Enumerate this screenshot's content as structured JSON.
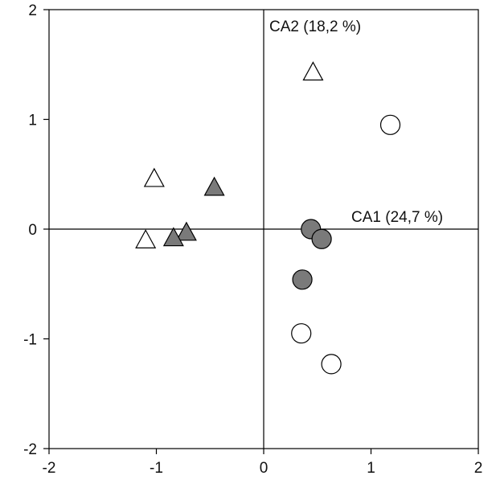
{
  "chart_data": {
    "type": "scatter",
    "xlim": [
      -2,
      2
    ],
    "ylim": [
      -2,
      2
    ],
    "x_ticks": [
      -2,
      -1,
      0,
      1,
      2
    ],
    "y_ticks": [
      -2,
      -1,
      0,
      1,
      2
    ],
    "x_tick_labels": [
      "-2",
      "-1",
      "0",
      "1",
      "2"
    ],
    "y_tick_labels": [
      "-2",
      "-1",
      "0",
      "1",
      "2"
    ],
    "axis1_label": "CA1 (24,7 %)",
    "axis2_label": "CA2 (18,2 %)",
    "grid": false,
    "colors": {
      "axis": "#000000",
      "filled_marker": "#7a7a7a",
      "open_marker": "#ffffff"
    },
    "series": [
      {
        "marker": "triangle",
        "fill": "open",
        "points": [
          [
            -1.02,
            0.45
          ],
          [
            0.46,
            1.42
          ],
          [
            -1.1,
            -0.11
          ]
        ]
      },
      {
        "marker": "triangle",
        "fill": "filled",
        "points": [
          [
            -0.46,
            0.37
          ],
          [
            -0.72,
            -0.04
          ],
          [
            -0.84,
            -0.09
          ]
        ]
      },
      {
        "marker": "circle",
        "fill": "filled",
        "points": [
          [
            0.44,
            0.0
          ],
          [
            0.54,
            -0.09
          ],
          [
            0.36,
            -0.46
          ]
        ]
      },
      {
        "marker": "circle",
        "fill": "open",
        "points": [
          [
            1.18,
            0.95
          ],
          [
            0.35,
            -0.95
          ],
          [
            0.63,
            -1.23
          ]
        ]
      }
    ]
  }
}
